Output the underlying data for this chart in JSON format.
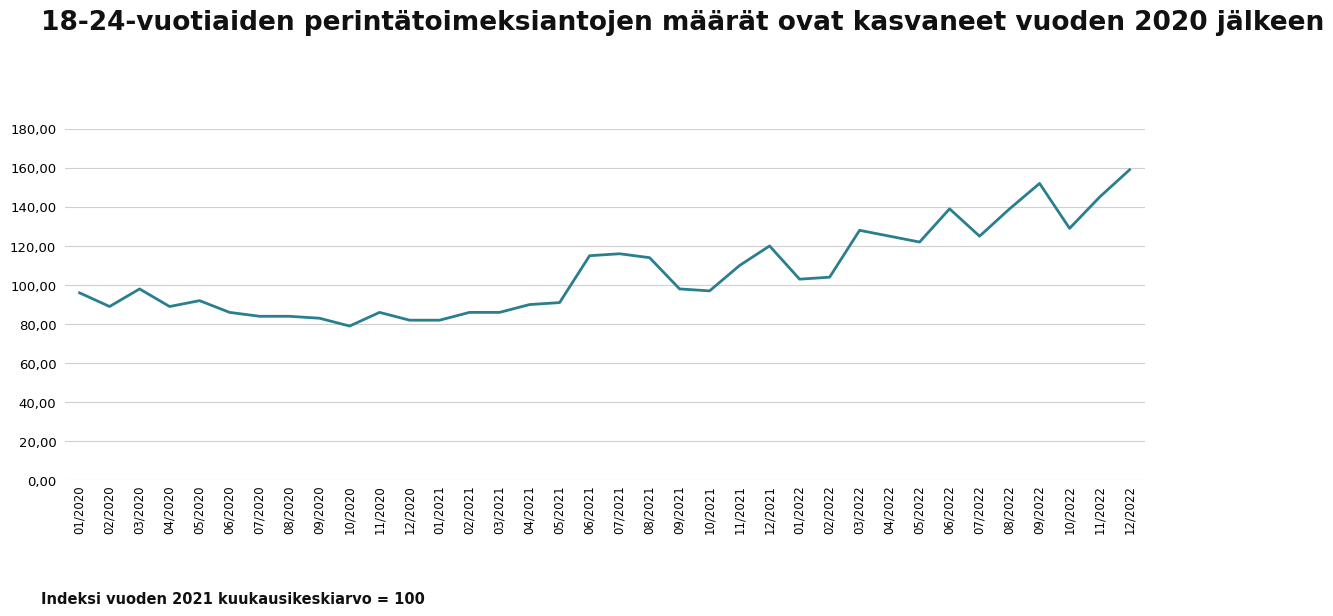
{
  "title": "18-24-vuotiaiden perintätoimeksiantojen määrät ovat kasvaneet vuoden 2020 jälkeen",
  "subtitle": "Indeksi vuoden 2021 kuukausikeskiarvo = 100",
  "line_color": "#2a7f8f",
  "background_color": "#ffffff",
  "grid_color": "#d0d0d0",
  "title_fontsize": 19,
  "subtitle_fontsize": 10.5,
  "labels": [
    "01/2020",
    "02/2020",
    "03/2020",
    "04/2020",
    "05/2020",
    "06/2020",
    "07/2020",
    "08/2020",
    "09/2020",
    "10/2020",
    "11/2020",
    "12/2020",
    "01/2021",
    "02/2021",
    "03/2021",
    "04/2021",
    "05/2021",
    "06/2021",
    "07/2021",
    "08/2021",
    "09/2021",
    "10/2021",
    "11/2021",
    "12/2021",
    "01/2022",
    "02/2022",
    "03/2022",
    "04/2022",
    "05/2022",
    "06/2022",
    "07/2022",
    "08/2022",
    "09/2022",
    "10/2022",
    "11/2022",
    "12/2022"
  ],
  "values": [
    96,
    89,
    98,
    89,
    92,
    86,
    84,
    84,
    83,
    79,
    86,
    82,
    82,
    86,
    86,
    90,
    91,
    115,
    116,
    114,
    98,
    97,
    110,
    120,
    103,
    104,
    128,
    125,
    122,
    139,
    125,
    139,
    152,
    129,
    145,
    159
  ],
  "ylim": [
    0,
    180
  ],
  "yticks": [
    0,
    20,
    40,
    60,
    80,
    100,
    120,
    140,
    160,
    180
  ]
}
